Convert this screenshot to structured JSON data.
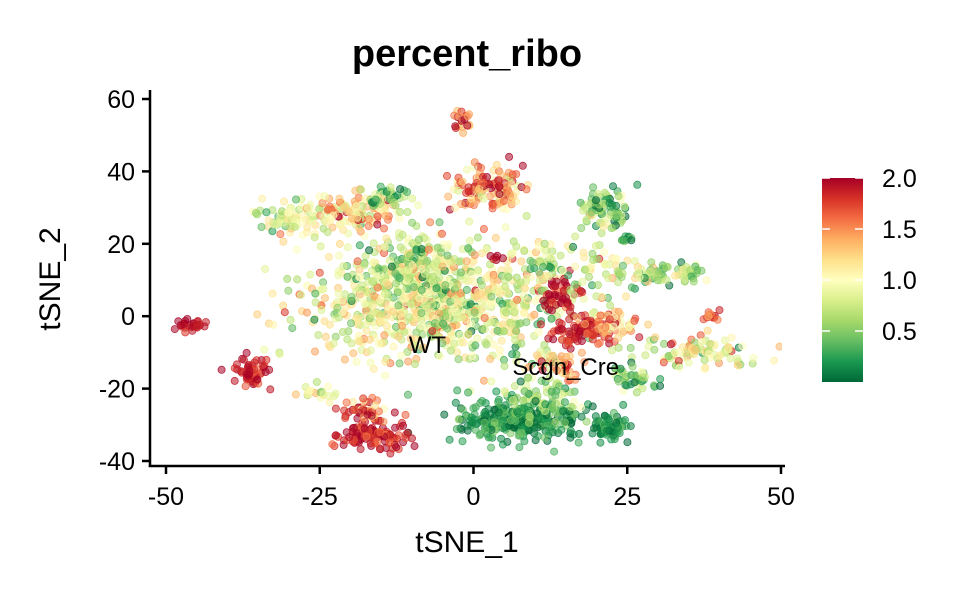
{
  "chart_data": {
    "type": "scatter",
    "title": "percent_ribo",
    "xlabel": "tSNE_1",
    "ylabel": "tSNE_2",
    "xlim": [
      -52,
      50.5
    ],
    "ylim": [
      -41.5,
      62
    ],
    "x_ticks": [
      -50,
      -25,
      0,
      25,
      50
    ],
    "x_tick_labels": [
      "-50",
      "-25",
      "0",
      "25",
      "50"
    ],
    "y_ticks": [
      -40,
      -20,
      0,
      20,
      40,
      60
    ],
    "y_tick_labels": [
      "-40",
      "-20",
      "0",
      "20",
      "40",
      "60"
    ],
    "grid": false,
    "color_scale": {
      "name": "RdYlGn (reversed)",
      "min": 0,
      "max": 2.0,
      "stops": [
        "#006837",
        "#1a9850",
        "#66bd63",
        "#a6d96a",
        "#d9ef8b",
        "#ffffbf",
        "#fee08b",
        "#fdae61",
        "#f46d43",
        "#d73027",
        "#a50026"
      ],
      "ticks": [
        0.5,
        1.0,
        1.5,
        2.0
      ],
      "tick_labels": [
        "0.5",
        "1.0",
        "1.5",
        "2.0"
      ],
      "legend_position": "right"
    },
    "annotations": [
      {
        "text": "WT",
        "x": -7.5,
        "y": -8
      },
      {
        "text": "Scgn_Cre",
        "x": 15,
        "y": -14
      }
    ],
    "clusters": [
      {
        "cx": -5.5,
        "cy": 4,
        "sx": 10.5,
        "sy": 8.5,
        "n": 900,
        "value": 0.9,
        "spread": 0.35
      },
      {
        "cx": -10,
        "cy": 15,
        "sx": 4,
        "sy": 4,
        "n": 120,
        "value": 0.75,
        "spread": 0.3
      },
      {
        "cx": 7,
        "cy": -29,
        "sx": 5.5,
        "sy": 3.2,
        "n": 300,
        "value": 0.2,
        "spread": 0.2
      },
      {
        "cx": 11,
        "cy": -22,
        "sx": 3,
        "sy": 3,
        "n": 80,
        "value": 0.5,
        "spread": 0.3
      },
      {
        "cx": 22,
        "cy": -31,
        "sx": 1.6,
        "sy": 1.5,
        "n": 70,
        "value": 0.15,
        "spread": 0.15
      },
      {
        "cx": -16,
        "cy": -33,
        "sx": 3,
        "sy": 2.2,
        "n": 110,
        "value": 1.9,
        "spread": 0.15
      },
      {
        "cx": -18,
        "cy": -26.5,
        "sx": 2.2,
        "sy": 1.8,
        "n": 50,
        "value": 1.6,
        "spread": 0.3
      },
      {
        "cx": -25.5,
        "cy": -21,
        "sx": 1.6,
        "sy": 1.2,
        "n": 20,
        "value": 1.1,
        "spread": 0.3
      },
      {
        "cx": -36,
        "cy": -15,
        "sx": 1.5,
        "sy": 2,
        "n": 55,
        "value": 1.9,
        "spread": 0.15
      },
      {
        "cx": -46,
        "cy": -2.5,
        "sx": 1.1,
        "sy": 0.9,
        "n": 30,
        "value": 1.95,
        "spread": 0.1
      },
      {
        "cx": -28,
        "cy": 27,
        "sx": 3.5,
        "sy": 2.5,
        "n": 90,
        "value": 0.8,
        "spread": 0.3
      },
      {
        "cx": -19,
        "cy": 29,
        "sx": 3.5,
        "sy": 2.2,
        "n": 90,
        "value": 1.3,
        "spread": 0.35
      },
      {
        "cx": -14,
        "cy": 33,
        "sx": 2,
        "sy": 1.5,
        "n": 40,
        "value": 0.5,
        "spread": 0.3
      },
      {
        "cx": 2,
        "cy": 35,
        "sx": 3,
        "sy": 3,
        "n": 130,
        "value": 1.5,
        "spread": 0.35
      },
      {
        "cx": -2,
        "cy": 54,
        "sx": 0.9,
        "sy": 1.4,
        "n": 20,
        "value": 1.6,
        "spread": 0.3
      },
      {
        "cx": 18,
        "cy": -4,
        "sx": 2.7,
        "sy": 1.8,
        "n": 80,
        "value": 1.85,
        "spread": 0.15
      },
      {
        "cx": 14,
        "cy": 6,
        "sx": 1.5,
        "sy": 2.5,
        "n": 50,
        "value": 1.9,
        "spread": 0.2
      },
      {
        "cx": 23,
        "cy": -2,
        "sx": 2.2,
        "sy": 2,
        "n": 50,
        "value": 1.4,
        "spread": 0.35
      },
      {
        "cx": 14,
        "cy": -13,
        "sx": 2,
        "sy": 2.2,
        "n": 45,
        "value": 1.4,
        "spread": 0.35
      },
      {
        "cx": 12,
        "cy": 15,
        "sx": 1.5,
        "sy": 2.2,
        "n": 35,
        "value": 0.7,
        "spread": 0.3
      },
      {
        "cx": 21,
        "cy": 30,
        "sx": 2.2,
        "sy": 2.8,
        "n": 80,
        "value": 0.5,
        "spread": 0.3
      },
      {
        "cx": 20,
        "cy": 13,
        "sx": 2,
        "sy": 5,
        "n": 40,
        "value": 1.0,
        "spread": 0.3
      },
      {
        "cx": 31,
        "cy": 12,
        "sx": 4,
        "sy": 1.5,
        "n": 80,
        "value": 0.7,
        "spread": 0.3
      },
      {
        "cx": 36,
        "cy": -10,
        "sx": 5,
        "sy": 2,
        "n": 100,
        "value": 1.0,
        "spread": 0.35
      },
      {
        "cx": 26,
        "cy": -17,
        "sx": 2,
        "sy": 1.8,
        "n": 45,
        "value": 0.5,
        "spread": 0.3
      },
      {
        "cx": 39,
        "cy": 0,
        "sx": 0.8,
        "sy": 0.8,
        "n": 12,
        "value": 1.8,
        "spread": 0.2
      },
      {
        "cx": 25,
        "cy": 21,
        "sx": 0.6,
        "sy": 0.8,
        "n": 10,
        "value": 0.3,
        "spread": 0.2
      },
      {
        "cx": 3.5,
        "cy": 16,
        "sx": 0.5,
        "sy": 0.5,
        "n": 6,
        "value": 1.8,
        "spread": 0.2
      }
    ]
  }
}
